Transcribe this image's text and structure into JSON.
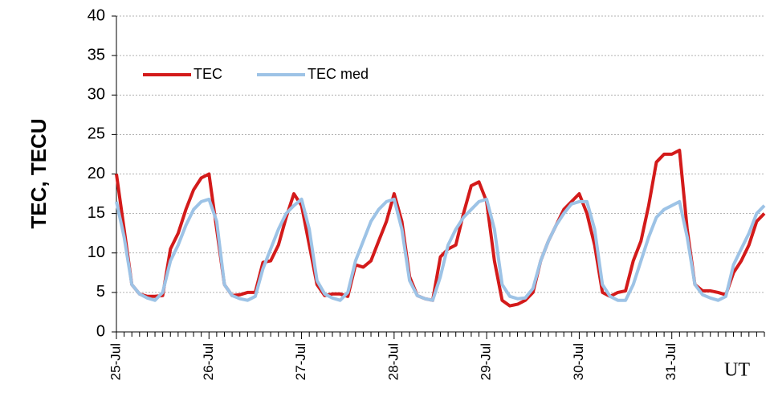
{
  "chart_data": {
    "type": "line",
    "ylabel": "TEC, TECU",
    "xlabel": "UT",
    "categories": [
      "25-Jul",
      null,
      null,
      null,
      null,
      null,
      null,
      null,
      null,
      null,
      null,
      null,
      "26-Jul",
      null,
      null,
      null,
      null,
      null,
      null,
      null,
      null,
      null,
      null,
      null,
      "27-Jul",
      null,
      null,
      null,
      null,
      null,
      null,
      null,
      null,
      null,
      null,
      null,
      "28-Jul",
      null,
      null,
      null,
      null,
      null,
      null,
      null,
      null,
      null,
      null,
      null,
      "29-Jul",
      null,
      null,
      null,
      null,
      null,
      null,
      null,
      null,
      null,
      null,
      null,
      "30-Jul",
      null,
      null,
      null,
      null,
      null,
      null,
      null,
      null,
      null,
      null,
      null,
      "31-Jul",
      null,
      null,
      null,
      null,
      null,
      null,
      null,
      null,
      null,
      null,
      null,
      null
    ],
    "series": [
      {
        "name": "TEC",
        "color": "#d31a1a",
        "values": [
          20,
          13,
          6,
          4.8,
          4.5,
          4.5,
          4.6,
          10.5,
          12.5,
          15.5,
          18,
          19.5,
          20,
          13,
          6,
          4.6,
          4.7,
          5,
          5,
          8.8,
          9,
          11,
          14.5,
          17.5,
          16,
          11,
          6,
          4.6,
          4.8,
          4.8,
          4.5,
          8.5,
          8.2,
          9,
          11.5,
          14,
          17.5,
          14,
          7,
          4.6,
          4.2,
          4,
          9.5,
          10.5,
          11,
          15,
          18.5,
          19,
          16.5,
          9,
          4,
          3.3,
          3.5,
          4,
          5,
          9,
          11.5,
          13.5,
          15.5,
          16.5,
          17.5,
          15,
          11,
          5,
          4.5,
          5,
          5.2,
          9,
          11.5,
          16,
          21.5,
          22.5,
          22.5,
          23,
          13,
          6,
          5.2,
          5.2,
          5,
          4.7,
          7.5,
          9,
          11,
          14,
          15
        ]
      },
      {
        "name": "TEC med",
        "color": "#9dc3e6",
        "values": [
          16.5,
          12,
          6,
          4.8,
          4.3,
          4,
          5,
          9,
          11,
          13.5,
          15.5,
          16.5,
          16.8,
          14,
          6,
          4.6,
          4.2,
          4,
          4.5,
          8,
          10.5,
          13,
          15,
          16,
          16.8,
          13,
          6.5,
          4.8,
          4.3,
          4,
          5,
          9,
          11.5,
          14,
          15.5,
          16.5,
          16.8,
          13,
          6.5,
          4.6,
          4.2,
          4,
          7,
          11,
          13,
          14.5,
          15.5,
          16.5,
          16.8,
          13,
          6,
          4.5,
          4.2,
          4.3,
          5.5,
          9,
          11.5,
          13.5,
          15,
          16.2,
          16.5,
          16.5,
          13,
          6,
          4.5,
          4,
          4,
          6,
          9,
          12,
          14.5,
          15.5,
          16,
          16.5,
          12,
          6,
          4.7,
          4.3,
          4,
          4.5,
          8.5,
          10.5,
          12.5,
          15,
          16
        ]
      }
    ],
    "ylim": [
      0,
      40
    ],
    "yticks": [
      0,
      5,
      10,
      15,
      20,
      25,
      30,
      35,
      40
    ],
    "grid": true,
    "legend": "upper left"
  }
}
